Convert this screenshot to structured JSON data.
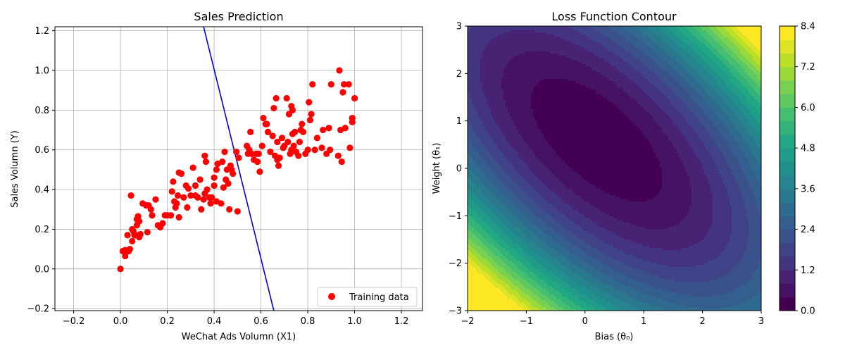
{
  "chart_data": [
    {
      "type": "scatter",
      "title": "Sales Prediction",
      "xlabel": "WeChat Ads Volumn (X1)",
      "ylabel": "Sales Volumn (Y)",
      "xlim": [
        -0.28,
        1.29
      ],
      "ylim": [
        -0.21,
        1.22
      ],
      "xticks": [
        -0.2,
        0.0,
        0.2,
        0.4,
        0.6,
        0.8,
        1.0,
        1.2
      ],
      "xtick_labels": [
        "−0.2",
        "0.0",
        "0.2",
        "0.4",
        "0.6",
        "0.8",
        "1.0",
        "1.2"
      ],
      "yticks": [
        -0.2,
        0.0,
        0.2,
        0.4,
        0.6,
        0.8,
        1.0,
        1.2
      ],
      "ytick_labels": [
        "−0.2",
        "0.0",
        "0.2",
        "0.4",
        "0.6",
        "0.8",
        "1.0",
        "1.2"
      ],
      "grid": true,
      "legend": {
        "position": "lower-right",
        "entries": [
          "Training data"
        ]
      },
      "series": [
        {
          "name": "Training data",
          "color": "#ff0000",
          "points": [
            [
              0.0,
              0.0
            ],
            [
              0.01,
              0.09
            ],
            [
              0.02,
              0.065
            ],
            [
              0.02,
              0.095
            ],
            [
              0.03,
              0.17
            ],
            [
              0.035,
              0.09
            ],
            [
              0.04,
              0.1
            ],
            [
              0.045,
              0.37
            ],
            [
              0.05,
              0.2
            ],
            [
              0.05,
              0.14
            ],
            [
              0.055,
              0.19
            ],
            [
              0.06,
              0.17
            ],
            [
              0.065,
              0.17
            ],
            [
              0.07,
              0.25
            ],
            [
              0.07,
              0.22
            ],
            [
              0.075,
              0.265
            ],
            [
              0.08,
              0.24
            ],
            [
              0.08,
              0.16
            ],
            [
              0.085,
              0.175
            ],
            [
              0.095,
              0.33
            ],
            [
              0.11,
              0.32
            ],
            [
              0.115,
              0.185
            ],
            [
              0.12,
              0.32
            ],
            [
              0.13,
              0.3
            ],
            [
              0.135,
              0.27
            ],
            [
              0.15,
              0.35
            ],
            [
              0.16,
              0.22
            ],
            [
              0.17,
              0.21
            ],
            [
              0.18,
              0.23
            ],
            [
              0.19,
              0.27
            ],
            [
              0.2,
              0.27
            ],
            [
              0.215,
              0.27
            ],
            [
              0.22,
              0.39
            ],
            [
              0.225,
              0.44
            ],
            [
              0.23,
              0.34
            ],
            [
              0.235,
              0.31
            ],
            [
              0.24,
              0.33
            ],
            [
              0.245,
              0.37
            ],
            [
              0.25,
              0.485
            ],
            [
              0.25,
              0.26
            ],
            [
              0.26,
              0.48
            ],
            [
              0.27,
              0.36
            ],
            [
              0.28,
              0.42
            ],
            [
              0.285,
              0.31
            ],
            [
              0.29,
              0.405
            ],
            [
              0.3,
              0.37
            ],
            [
              0.31,
              0.51
            ],
            [
              0.32,
              0.42
            ],
            [
              0.32,
              0.37
            ],
            [
              0.33,
              0.36
            ],
            [
              0.34,
              0.45
            ],
            [
              0.345,
              0.3
            ],
            [
              0.355,
              0.35
            ],
            [
              0.36,
              0.57
            ],
            [
              0.36,
              0.38
            ],
            [
              0.365,
              0.54
            ],
            [
              0.37,
              0.4
            ],
            [
              0.38,
              0.36
            ],
            [
              0.385,
              0.33
            ],
            [
              0.39,
              0.36
            ],
            [
              0.4,
              0.42
            ],
            [
              0.4,
              0.46
            ],
            [
              0.41,
              0.5
            ],
            [
              0.41,
              0.34
            ],
            [
              0.415,
              0.53
            ],
            [
              0.43,
              0.33
            ],
            [
              0.435,
              0.54
            ],
            [
              0.44,
              0.41
            ],
            [
              0.445,
              0.59
            ],
            [
              0.45,
              0.45
            ],
            [
              0.455,
              0.5
            ],
            [
              0.46,
              0.43
            ],
            [
              0.465,
              0.3
            ],
            [
              0.47,
              0.52
            ],
            [
              0.475,
              0.5
            ],
            [
              0.48,
              0.48
            ],
            [
              0.495,
              0.59
            ],
            [
              0.5,
              0.29
            ],
            [
              0.505,
              0.56
            ],
            [
              0.54,
              0.62
            ],
            [
              0.545,
              0.58
            ],
            [
              0.55,
              0.6
            ],
            [
              0.555,
              0.69
            ],
            [
              0.56,
              0.58
            ],
            [
              0.57,
              0.55
            ],
            [
              0.58,
              0.58
            ],
            [
              0.585,
              0.54
            ],
            [
              0.59,
              0.58
            ],
            [
              0.595,
              0.49
            ],
            [
              0.605,
              0.62
            ],
            [
              0.61,
              0.76
            ],
            [
              0.62,
              0.73
            ],
            [
              0.625,
              0.73
            ],
            [
              0.63,
              0.69
            ],
            [
              0.64,
              0.59
            ],
            [
              0.65,
              0.67
            ],
            [
              0.655,
              0.81
            ],
            [
              0.66,
              0.57
            ],
            [
              0.665,
              0.86
            ],
            [
              0.67,
              0.55
            ],
            [
              0.67,
              0.64
            ],
            [
              0.675,
              0.52
            ],
            [
              0.68,
              0.56
            ],
            [
              0.69,
              0.66
            ],
            [
              0.695,
              0.61
            ],
            [
              0.7,
              0.62
            ],
            [
              0.71,
              0.86
            ],
            [
              0.715,
              0.64
            ],
            [
              0.72,
              0.78
            ],
            [
              0.725,
              0.58
            ],
            [
              0.73,
              0.82
            ],
            [
              0.73,
              0.6
            ],
            [
              0.735,
              0.8
            ],
            [
              0.735,
              0.68
            ],
            [
              0.74,
              0.62
            ],
            [
              0.745,
              0.69
            ],
            [
              0.75,
              0.59
            ],
            [
              0.76,
              0.57
            ],
            [
              0.765,
              0.64
            ],
            [
              0.77,
              0.7
            ],
            [
              0.775,
              0.73
            ],
            [
              0.78,
              0.69
            ],
            [
              0.79,
              0.58
            ],
            [
              0.8,
              0.6
            ],
            [
              0.805,
              0.84
            ],
            [
              0.81,
              0.75
            ],
            [
              0.815,
              0.78
            ],
            [
              0.82,
              0.93
            ],
            [
              0.83,
              0.6
            ],
            [
              0.84,
              0.66
            ],
            [
              0.86,
              0.61
            ],
            [
              0.865,
              0.7
            ],
            [
              0.88,
              0.58
            ],
            [
              0.89,
              0.71
            ],
            [
              0.895,
              0.6
            ],
            [
              0.9,
              0.93
            ],
            [
              0.93,
              0.57
            ],
            [
              0.935,
              1.0
            ],
            [
              0.94,
              0.7
            ],
            [
              0.945,
              0.54
            ],
            [
              0.95,
              0.89
            ],
            [
              0.955,
              0.93
            ],
            [
              0.96,
              0.71
            ],
            [
              0.975,
              0.93
            ],
            [
              0.98,
              0.61
            ],
            [
              0.99,
              0.76
            ],
            [
              0.99,
              0.74
            ],
            [
              1.0,
              0.86
            ]
          ]
        },
        {
          "color": "#0000dd",
          "type": "line",
          "points": [
            [
              0.355,
              1.22
            ],
            [
              0.655,
              -0.21
            ]
          ]
        }
      ]
    },
    {
      "type": "heatmap",
      "subtype": "contourf",
      "title": "Loss Function Contour",
      "xlabel": "Bias (θ₀)",
      "ylabel": "Weight (θ₁)",
      "xlim": [
        -2,
        3
      ],
      "ylim": [
        -3,
        3
      ],
      "xticks": [
        -2,
        -1,
        0,
        1,
        2,
        3
      ],
      "xtick_labels": [
        "−2",
        "−1",
        "0",
        "1",
        "2",
        "3"
      ],
      "yticks": [
        -3,
        -2,
        -1,
        0,
        1,
        2,
        3
      ],
      "ytick_labels": [
        "−3",
        "−2",
        "−1",
        "0",
        "1",
        "2",
        "3"
      ],
      "colormap": "viridis",
      "levels": [
        0.0,
        0.4,
        0.8,
        1.2,
        1.6,
        2.0,
        2.4,
        2.8,
        3.2,
        3.6,
        4.0,
        4.4,
        4.8,
        5.2,
        5.6,
        6.0,
        6.4,
        6.8,
        7.2,
        7.6,
        8.0,
        8.4
      ],
      "minimum": {
        "bias": 0.2,
        "weight": 0.6,
        "loss": 0.03
      },
      "colorbar": {
        "min": 0.0,
        "max": 8.4,
        "ticks": [
          0.0,
          1.2,
          2.4,
          3.6,
          4.8,
          6.0,
          7.2,
          8.4
        ],
        "tick_labels": [
          "0.0",
          "1.2",
          "2.4",
          "3.6",
          "4.8",
          "6.0",
          "7.2",
          "8.4"
        ]
      }
    }
  ]
}
